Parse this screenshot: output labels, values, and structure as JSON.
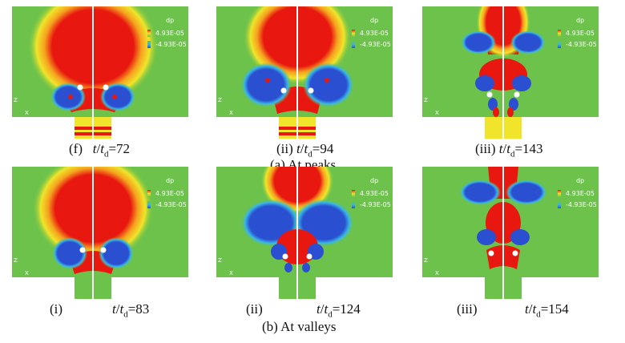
{
  "legend": {
    "title": "dp",
    "max_label": "4.93E-05",
    "min_label": "-4.93E-05"
  },
  "axis_labels": {
    "z": "Z",
    "x": "X"
  },
  "colors": {
    "background": "#6cc24a",
    "positive": "#e8170f",
    "negative": "#2a4fd1",
    "midtone": "#f0e52a",
    "light_blue": "#39b8e6"
  },
  "groups": [
    {
      "label": "(a)   At peaks"
    },
    {
      "label": "(b)   At valleys"
    }
  ],
  "panels": [
    {
      "index": "(f)",
      "sep": " ",
      "t": "t",
      "td": "t",
      "sub": "d",
      "value": "=72"
    },
    {
      "index": "(ii)",
      "sep": " ",
      "t": "t",
      "td": "t",
      "sub": "d",
      "value": "=94"
    },
    {
      "index": "(iii)",
      "sep": " ",
      "t": "t",
      "td": "t",
      "sub": "d",
      "value": "=143"
    },
    {
      "index": "(i)",
      "sep": "",
      "t": "t",
      "td": "t",
      "sub": "d",
      "value": "=83"
    },
    {
      "index": "(ii)",
      "sep": "",
      "t": "t",
      "td": "t",
      "sub": "d",
      "value": "=124"
    },
    {
      "index": "(iii)",
      "sep": "",
      "t": "t",
      "td": "t",
      "sub": "d",
      "value": "=154"
    }
  ]
}
